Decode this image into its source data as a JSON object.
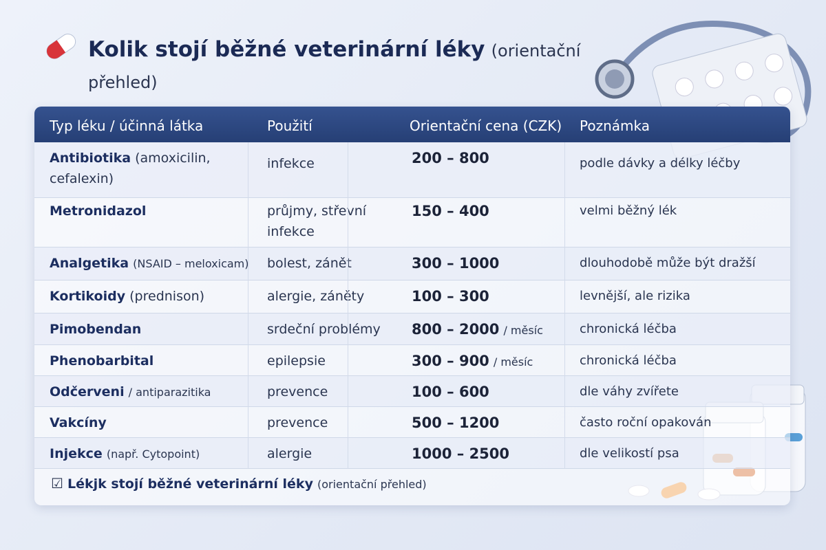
{
  "header": {
    "title_bold": "Kolik stojí běžné veterinární léky",
    "title_rest": "(orientační přehled)"
  },
  "table": {
    "columns": [
      "Typ léku / účinná látka",
      "Použití",
      "Orientační cena (CZK)",
      "Poznámka"
    ],
    "rows": [
      {
        "name": "Antibiotika",
        "detail": "(amoxicilin, cefalexin)",
        "use": "infekce",
        "price": "200 – 800",
        "note": "podle dávky a délky léčby"
      },
      {
        "name": "Metronidazol",
        "use": "průjmy, střevní infekce",
        "price": "150 – 400",
        "note": "velmi běžný lék"
      },
      {
        "name": "Analgetika",
        "detail": "(NSAID – meloxicam)",
        "use": "bolest, zánět",
        "price": "300 – 1000",
        "note": "dlouhodobě může být dražší"
      },
      {
        "name": "Kortikoidy",
        "detail": "(prednison)",
        "use": "alergie, záněty",
        "price": "100 – 300",
        "note": "levnější, ale rizika"
      },
      {
        "name": "Pimobendan",
        "use": "srdeční problémy",
        "price": "800 – 2000",
        "unit": "/ měsíc",
        "note": "chronická léčba"
      },
      {
        "name": "Phenobarbital",
        "use": "epilepsie",
        "price": "300 – 900",
        "unit": "/ měsíc",
        "note": "chronická léčba"
      },
      {
        "name": "Odčerveni",
        "detail": "/ antiparazitika",
        "use": "prevence",
        "price": "100 – 600",
        "note": "dle váhy zvířete"
      },
      {
        "name": "Vakcíny",
        "use": "prevence",
        "price": "500 – 1200",
        "note": "často roční opakován"
      },
      {
        "name": "Injekce",
        "detail": "(např. Cytopoint)",
        "use": "alergie",
        "price": "1000 – 2500",
        "note": "dle velikostí psa"
      }
    ]
  },
  "footer": {
    "bold": "Lékjk stojí běžné veterinární léky",
    "rest": "(orientační přehled)"
  }
}
